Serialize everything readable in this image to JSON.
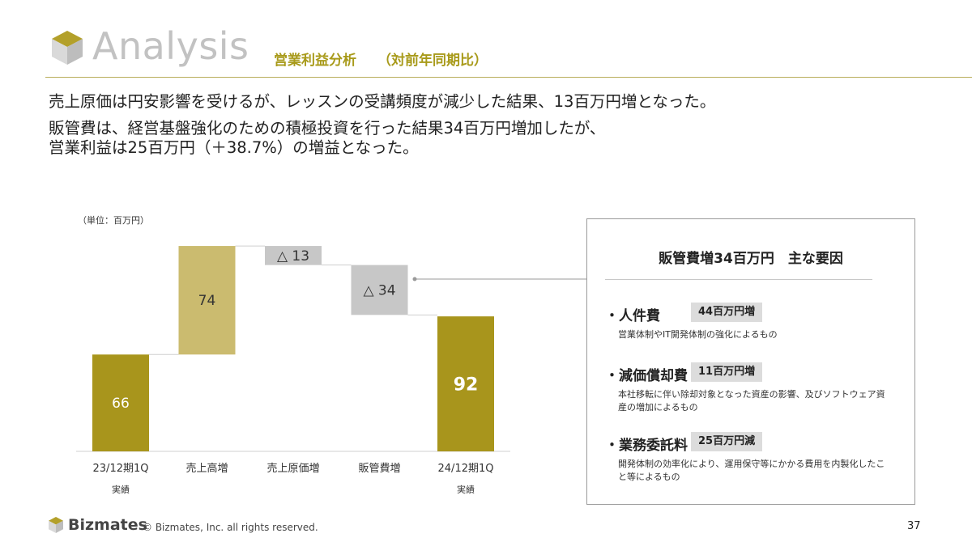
{
  "header": {
    "title": "Analysis",
    "subtitle": "営業利益分析",
    "subtitle_paren": "（対前年同期比）"
  },
  "lead": {
    "line1": "売上原価は円安影響を受けるが、レッスンの受講頻度が減少した結果、13百万円増となった。",
    "line2": "販管費は、経営基盤強化のための積極投資を行った結果34百万円増加したが、",
    "line3": "営業利益は25百万円（＋38.7%）の増益となった。"
  },
  "colors": {
    "accent": "#a89a1a",
    "bar_dark": "#a8951c",
    "bar_light": "#cbbb6f",
    "bar_gray": "#c7c7c7",
    "title_gray": "#c2c2c2"
  },
  "chart_data": {
    "type": "waterfall",
    "unit_label": "（単位：百万円）",
    "categories": [
      {
        "label": "23/12期1Q",
        "sub": "実績"
      },
      {
        "label": "売上高増",
        "sub": ""
      },
      {
        "label": "売上原価増",
        "sub": ""
      },
      {
        "label": "販管費増",
        "sub": ""
      },
      {
        "label": "24/12期1Q",
        "sub": "実績"
      }
    ],
    "steps": [
      {
        "kind": "total",
        "value": 66,
        "label": "66",
        "color": "#a8951c"
      },
      {
        "kind": "increase",
        "value": 74,
        "label": "74",
        "color": "#cbbb6f"
      },
      {
        "kind": "decrease",
        "value": -13,
        "label": "△ 13",
        "color": "#c7c7c7"
      },
      {
        "kind": "decrease",
        "value": -34,
        "label": "△ 34",
        "color": "#c7c7c7"
      },
      {
        "kind": "total",
        "value": 92,
        "label": "92",
        "color": "#a8951c"
      }
    ],
    "ylim": [
      0,
      145
    ]
  },
  "factors": {
    "title": "販管費増34百万円　主な要因",
    "items": [
      {
        "name": "・人件費",
        "amount": "44百万円増",
        "desc": "営業体制やIT開発体制の強化によるもの"
      },
      {
        "name": "・減価償却費",
        "amount": "11百万円増",
        "desc": "本社移転に伴い除却対象となった資産の影響、及びソフトウェア資産の増加によるもの"
      },
      {
        "name": "・業務委託料",
        "amount": "25百万円減",
        "desc": "開発体制の効率化により、運用保守等にかかる費用を内製化したこと等によるもの"
      }
    ]
  },
  "footer": {
    "brand": "Bizmates",
    "copyright": "© Bizmates, Inc. all rights reserved.",
    "page": "37"
  }
}
